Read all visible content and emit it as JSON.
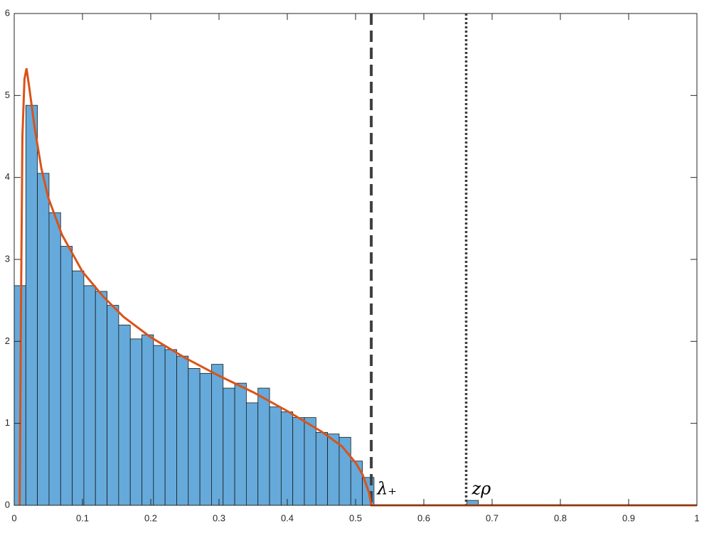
{
  "chart_data": {
    "type": "histogram",
    "bins": [
      0,
      0.017,
      0.034,
      0.051,
      0.068,
      0.085,
      0.102,
      0.119,
      0.136,
      0.153,
      0.17,
      0.187,
      0.204,
      0.221,
      0.238,
      0.255,
      0.272,
      0.289,
      0.306,
      0.323,
      0.34,
      0.357,
      0.374,
      0.391,
      0.408,
      0.425,
      0.442,
      0.459,
      0.476,
      0.493,
      0.51,
      0.527,
      0.544,
      0.561,
      0.578,
      0.595,
      0.612,
      0.629,
      0.646,
      0.663,
      0.68
    ],
    "counts": [
      2.68,
      4.88,
      4.05,
      3.57,
      3.16,
      2.86,
      2.68,
      2.61,
      2.44,
      2.2,
      2.03,
      2.08,
      1.95,
      1.9,
      1.82,
      1.67,
      1.61,
      1.72,
      1.43,
      1.49,
      1.25,
      1.43,
      1.2,
      1.14,
      1.07,
      1.07,
      0.89,
      0.87,
      0.83,
      0.54,
      0.34,
      0,
      0,
      0,
      0,
      0,
      0,
      0,
      0,
      0.06
    ],
    "color": "#65aadb",
    "overlay": {
      "type": "line",
      "color": "#d95319",
      "x": [
        0.008,
        0.01,
        0.012,
        0.015,
        0.018,
        0.022,
        0.03,
        0.04,
        0.05,
        0.07,
        0.1,
        0.13,
        0.16,
        0.2,
        0.25,
        0.3,
        0.35,
        0.4,
        0.45,
        0.48,
        0.5,
        0.51,
        0.52,
        0.523,
        1
      ],
      "values": [
        0,
        2.5,
        4.5,
        5.2,
        5.33,
        5.1,
        4.6,
        4.1,
        3.75,
        3.3,
        2.85,
        2.55,
        2.3,
        2.05,
        1.8,
        1.58,
        1.38,
        1.15,
        0.9,
        0.72,
        0.52,
        0.38,
        0.15,
        0,
        0
      ]
    },
    "reference_lines": [
      {
        "x": 0.523,
        "style": "dashed",
        "label": "λ₊"
      },
      {
        "x": 0.662,
        "style": "dotted",
        "label": "zρ"
      }
    ],
    "xlim": [
      0,
      1
    ],
    "xticks": [
      0,
      0.1,
      0.2,
      0.3,
      0.4,
      0.5,
      0.6,
      0.7,
      0.8,
      0.9,
      1
    ],
    "ylim": [
      0,
      6
    ],
    "yticks": [
      0,
      1,
      2,
      3,
      4,
      5,
      6
    ]
  }
}
